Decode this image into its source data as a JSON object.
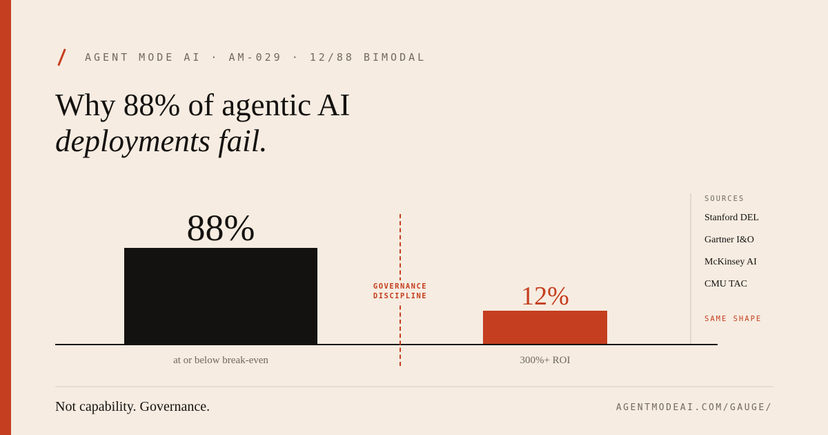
{
  "kicker": "AGENT MODE AI · AM-029 · 12/88 BIMODAL",
  "title": {
    "line1": "Why 88% of agentic AI",
    "line2": "deployments fail."
  },
  "chart_data": {
    "type": "bar",
    "categories": [
      "at or below break-even",
      "300%+ ROI"
    ],
    "values": [
      88,
      12
    ],
    "value_labels": [
      "88%",
      "12%"
    ],
    "colors": [
      "#141210",
      "#c43e1f"
    ],
    "divider_label": [
      "GOVERNANCE",
      "DISCIPLINE"
    ],
    "grid": false
  },
  "sources": {
    "heading": "SOURCES",
    "items": [
      "Stanford DEL",
      "Gartner I&O",
      "McKinsey AI",
      "CMU TAC"
    ],
    "note": "SAME SHAPE"
  },
  "footer": {
    "tagline": "Not capability. Governance.",
    "url": "AGENTMODEAI.COM/GAUGE/"
  },
  "colors": {
    "accent": "#c43e1f",
    "background": "#f6ece1",
    "ink": "#141210"
  }
}
